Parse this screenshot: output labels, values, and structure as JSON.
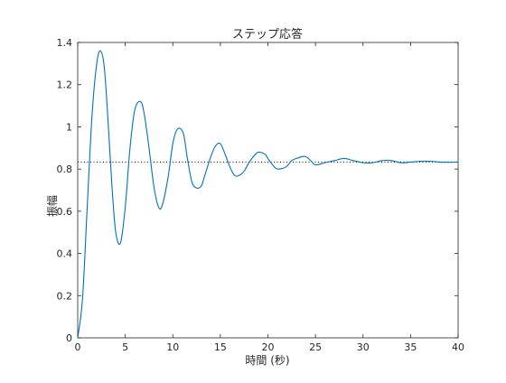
{
  "chart_data": {
    "type": "line",
    "title": "ステップ応答",
    "xlabel": "時間 (秒)",
    "ylabel": "振幅",
    "xlim": [
      0,
      40
    ],
    "ylim": [
      0,
      1.4
    ],
    "x_ticks": [
      0,
      5,
      10,
      15,
      20,
      25,
      30,
      35,
      40
    ],
    "y_ticks": [
      0,
      0.2,
      0.4,
      0.6,
      0.8,
      1,
      1.2,
      1.4
    ],
    "grid": false,
    "line_color": "#0072BD",
    "steady_state": 0.833,
    "series": [
      {
        "x": [
          0,
          0.5,
          1.0,
          1.5,
          2.0,
          2.4,
          2.8,
          3.2,
          3.6,
          4.0,
          4.5,
          5.0,
          5.5,
          6.0,
          6.6,
          7.0,
          7.5,
          8.0,
          8.5,
          8.9,
          9.5,
          10.0,
          10.5,
          11.1,
          11.5,
          12.0,
          12.5,
          13.0,
          13.3,
          14.0,
          14.5,
          15.0,
          15.5,
          16.0,
          16.5,
          17.0,
          17.5,
          18.0,
          18.5,
          19.0,
          19.7,
          20.0,
          20.5,
          21.0,
          21.9,
          22.5,
          23.0,
          23.9,
          24.5,
          25.0,
          26.0,
          27.0,
          28.0,
          29.0,
          30.0,
          31.0,
          32.0,
          33.0,
          34.0,
          35.0,
          36.0,
          37.0,
          38.0,
          39.0,
          40.0
        ],
        "y": [
          0,
          0.18,
          0.62,
          1.05,
          1.3,
          1.36,
          1.28,
          1.02,
          0.72,
          0.5,
          0.45,
          0.62,
          0.9,
          1.08,
          1.12,
          1.06,
          0.9,
          0.72,
          0.62,
          0.63,
          0.76,
          0.92,
          0.99,
          0.97,
          0.86,
          0.74,
          0.71,
          0.72,
          0.76,
          0.86,
          0.91,
          0.92,
          0.87,
          0.81,
          0.77,
          0.77,
          0.79,
          0.83,
          0.86,
          0.88,
          0.87,
          0.85,
          0.82,
          0.8,
          0.81,
          0.84,
          0.85,
          0.86,
          0.84,
          0.82,
          0.83,
          0.84,
          0.85,
          0.84,
          0.83,
          0.83,
          0.84,
          0.84,
          0.83,
          0.833,
          0.837,
          0.837,
          0.833,
          0.832,
          0.833
        ]
      }
    ]
  }
}
